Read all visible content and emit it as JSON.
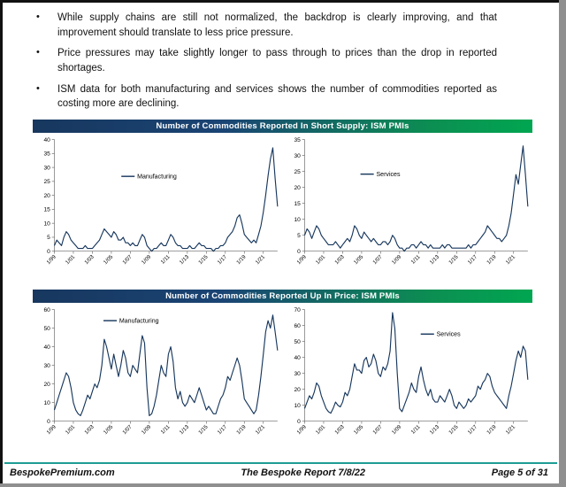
{
  "page": {
    "bullets": [
      "While supply chains are still not normalized, the backdrop is clearly improving, and that improvement should translate to less price pressure.",
      "Price pressures may take slightly longer to pass through to prices than the drop in reported shortages.",
      "ISM data for both manufacturing and services shows the number of commodities reported as costing more are declining."
    ],
    "footer": {
      "left": "BespokePremium.com",
      "center": "The Bespoke Report 7/8/22",
      "right": "Page 5 of 31"
    },
    "colors": {
      "line": "#16365c",
      "header_gradient_left": "#17375e",
      "header_gradient_right": "#00a651",
      "footer_rule": "#1e9d94"
    }
  },
  "chart_data": {
    "charts": [
      {
        "type": "line",
        "title": "Number of Commodities Reported In Short Supply: ISM PMIs",
        "x_tick_labels": [
          "1/99",
          "1/01",
          "1/03",
          "1/05",
          "1/07",
          "1/09",
          "1/11",
          "1/13",
          "1/15",
          "1/17",
          "1/19",
          "1/21"
        ],
        "panels": [
          {
            "legend": "Manufacturing",
            "ylim": [
              0,
              40
            ],
            "ytick_step": 5,
            "line_color": "#16365c",
            "values": [
              2,
              4,
              3,
              2,
              5,
              7,
              6,
              4,
              3,
              2,
              1,
              1,
              1,
              2,
              1,
              1,
              1,
              2,
              3,
              4,
              6,
              8,
              7,
              6,
              5,
              7,
              6,
              4,
              4,
              5,
              3,
              3,
              2,
              3,
              2,
              2,
              4,
              6,
              5,
              2,
              1,
              0,
              1,
              1,
              2,
              3,
              2,
              2,
              4,
              6,
              5,
              3,
              2,
              2,
              1,
              1,
              1,
              2,
              1,
              1,
              2,
              3,
              2,
              2,
              1,
              1,
              1,
              0,
              1,
              1,
              2,
              2,
              3,
              5,
              6,
              7,
              9,
              12,
              13,
              10,
              6,
              5,
              4,
              3,
              4,
              3,
              6,
              9,
              14,
              20,
              27,
              33,
              37,
              26,
              16
            ]
          },
          {
            "legend": "Services",
            "ylim": [
              0,
              35
            ],
            "ytick_step": 5,
            "line_color": "#16365c",
            "values": [
              5,
              7,
              6,
              4,
              6,
              8,
              7,
              5,
              4,
              3,
              2,
              2,
              2,
              3,
              2,
              1,
              2,
              3,
              4,
              3,
              5,
              8,
              7,
              5,
              4,
              6,
              5,
              4,
              3,
              4,
              3,
              2,
              2,
              3,
              3,
              2,
              3,
              5,
              4,
              2,
              1,
              1,
              0,
              1,
              1,
              2,
              2,
              1,
              2,
              3,
              2,
              2,
              1,
              2,
              1,
              1,
              1,
              1,
              2,
              1,
              2,
              2,
              1,
              1,
              1,
              1,
              1,
              1,
              1,
              2,
              1,
              2,
              2,
              3,
              4,
              5,
              6,
              8,
              7,
              6,
              5,
              4,
              4,
              3,
              4,
              5,
              8,
              12,
              18,
              24,
              21,
              27,
              33,
              24,
              14
            ]
          }
        ]
      },
      {
        "type": "line",
        "title": "Number of Commodities Reported Up In Price: ISM PMIs",
        "x_tick_labels": [
          "1/99",
          "1/01",
          "1/03",
          "1/05",
          "1/07",
          "1/09",
          "1/11",
          "1/13",
          "1/15",
          "1/17",
          "1/19",
          "1/21"
        ],
        "panels": [
          {
            "legend": "Manufacturing",
            "ylim": [
              0,
              60
            ],
            "ytick_step": 10,
            "line_color": "#16365c",
            "values": [
              6,
              10,
              14,
              18,
              22,
              26,
              24,
              18,
              10,
              6,
              4,
              3,
              6,
              10,
              14,
              12,
              16,
              20,
              18,
              22,
              30,
              44,
              40,
              34,
              28,
              36,
              30,
              24,
              30,
              38,
              34,
              26,
              24,
              30,
              28,
              26,
              36,
              46,
              42,
              18,
              3,
              4,
              8,
              14,
              22,
              30,
              26,
              24,
              36,
              40,
              32,
              18,
              12,
              16,
              10,
              8,
              10,
              14,
              12,
              10,
              14,
              18,
              14,
              10,
              6,
              8,
              6,
              4,
              4,
              8,
              12,
              14,
              18,
              24,
              22,
              26,
              30,
              34,
              30,
              22,
              12,
              10,
              8,
              6,
              4,
              6,
              14,
              24,
              36,
              48,
              54,
              50,
              57,
              48,
              38
            ]
          },
          {
            "legend": "Services",
            "ylim": [
              0,
              70
            ],
            "ytick_step": 10,
            "line_color": "#16365c",
            "values": [
              8,
              12,
              16,
              14,
              18,
              24,
              22,
              16,
              12,
              8,
              6,
              5,
              8,
              12,
              10,
              9,
              12,
              18,
              16,
              20,
              28,
              36,
              32,
              32,
              30,
              38,
              40,
              34,
              36,
              42,
              38,
              30,
              28,
              34,
              32,
              36,
              44,
              68,
              58,
              30,
              8,
              6,
              10,
              14,
              18,
              24,
              20,
              18,
              28,
              34,
              26,
              20,
              16,
              20,
              14,
              12,
              12,
              16,
              14,
              12,
              16,
              20,
              16,
              10,
              8,
              12,
              10,
              8,
              10,
              14,
              12,
              14,
              16,
              22,
              20,
              24,
              26,
              30,
              28,
              22,
              18,
              16,
              14,
              12,
              10,
              8,
              16,
              22,
              30,
              38,
              44,
              40,
              47,
              44,
              26
            ]
          }
        ]
      }
    ]
  }
}
